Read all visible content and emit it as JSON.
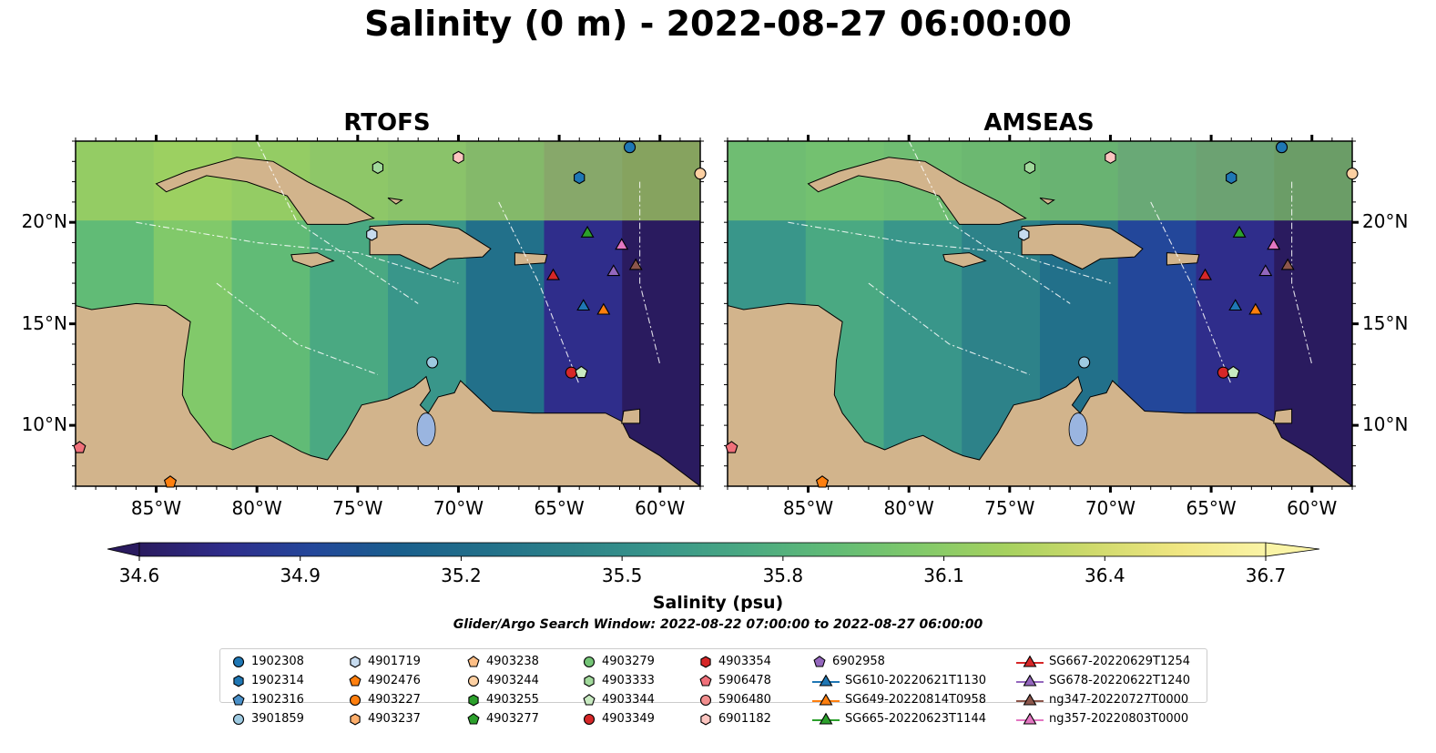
{
  "title": "Salinity (0 m) - 2022-08-27 06:00:00",
  "panels": [
    {
      "title": "RTOFS"
    },
    {
      "title": "AMSEAS"
    }
  ],
  "colors": {
    "land": "#d2b48c",
    "lake": "#9ab5e0",
    "cmap": [
      "#2a1b5f",
      "#2f2d8b",
      "#23479a",
      "#1a5f8c",
      "#22708a",
      "#2d8289",
      "#39968a",
      "#4aa982",
      "#61bb76",
      "#81c96a",
      "#a6d15f",
      "#cfda6c",
      "#f0e682",
      "#faf4a6"
    ]
  },
  "colorbar": {
    "ticks": [
      "34.6",
      "34.9",
      "35.2",
      "35.5",
      "35.8",
      "36.1",
      "36.4",
      "36.7"
    ],
    "label": "Salinity (psu)",
    "range": [
      34.6,
      36.7
    ]
  },
  "lon_ticks": [
    "85°W",
    "80°W",
    "75°W",
    "70°W",
    "65°W",
    "60°W"
  ],
  "lat_ticks": [
    "20°N",
    "15°N",
    "10°N"
  ],
  "search_window": "Glider/Argo Search Window: 2022-08-22 07:00:00 to 2022-08-27 06:00:00",
  "legend": [
    {
      "label": "1902308",
      "marker": "circle",
      "color": "#1f77b4"
    },
    {
      "label": "1902314",
      "marker": "hexagon",
      "color": "#1f77b4"
    },
    {
      "label": "1902316",
      "marker": "pentagon",
      "color": "#4a90c8"
    },
    {
      "label": "3901859",
      "marker": "circle",
      "color": "#9ecae1"
    },
    {
      "label": "4901719",
      "marker": "hexagon",
      "color": "#c6dbef"
    },
    {
      "label": "4902476",
      "marker": "pentagon",
      "color": "#ff7f0e"
    },
    {
      "label": "4903227",
      "marker": "circle",
      "color": "#ff7f0e"
    },
    {
      "label": "4903237",
      "marker": "hexagon",
      "color": "#fdae6b"
    },
    {
      "label": "4903238",
      "marker": "pentagon",
      "color": "#fdbe85"
    },
    {
      "label": "4903244",
      "marker": "circle",
      "color": "#fdd0a2"
    },
    {
      "label": "4903255",
      "marker": "hexagon",
      "color": "#2ca02c"
    },
    {
      "label": "4903277",
      "marker": "pentagon",
      "color": "#2ca02c"
    },
    {
      "label": "4903279",
      "marker": "circle",
      "color": "#74c476"
    },
    {
      "label": "4903333",
      "marker": "hexagon",
      "color": "#a1d99b"
    },
    {
      "label": "4903344",
      "marker": "pentagon",
      "color": "#c7e9c0"
    },
    {
      "label": "4903349",
      "marker": "circle",
      "color": "#d62728"
    },
    {
      "label": "4903354",
      "marker": "hexagon",
      "color": "#d62728"
    },
    {
      "label": "5906478",
      "marker": "pentagon",
      "color": "#f0707a"
    },
    {
      "label": "5906480",
      "marker": "circle",
      "color": "#f28e8e"
    },
    {
      "label": "6901182",
      "marker": "hexagon",
      "color": "#fcc5c0"
    },
    {
      "label": "6902958",
      "marker": "pentagon",
      "color": "#9467bd"
    },
    {
      "label": "SG610-20220621T1130",
      "marker": "triangle-line",
      "color": "#1f77b4"
    },
    {
      "label": "SG649-20220814T0958",
      "marker": "triangle-line",
      "color": "#ff7f0e"
    },
    {
      "label": "SG665-20220623T1144",
      "marker": "triangle-line",
      "color": "#2ca02c"
    },
    {
      "label": "SG667-20220629T1254",
      "marker": "triangle-line",
      "color": "#d62728"
    },
    {
      "label": "SG678-20220622T1240",
      "marker": "triangle-line",
      "color": "#9467bd"
    },
    {
      "label": "ng347-20220727T0000",
      "marker": "triangle-line",
      "color": "#8c564b"
    },
    {
      "label": "ng357-20220803T0000",
      "marker": "triangle-line",
      "color": "#e377c2"
    }
  ]
}
